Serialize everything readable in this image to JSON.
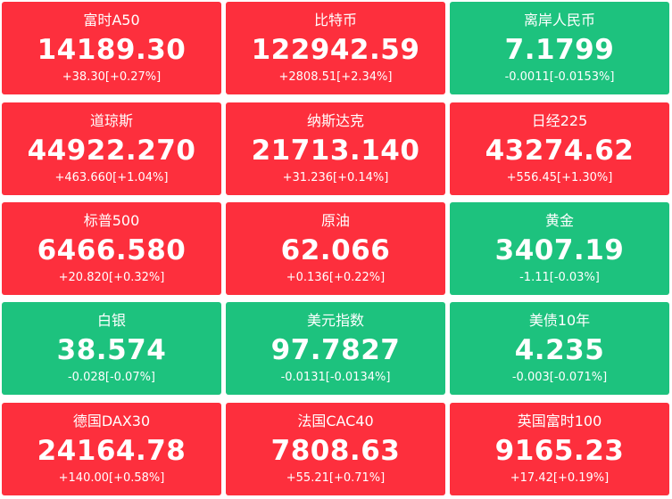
{
  "colors": {
    "up": "#fd2f3d",
    "down": "#1dc27e",
    "text": "#ffffff"
  },
  "tiles": [
    {
      "name": "富时A50",
      "price": "14189.30",
      "change": "+38.30[+0.27%]",
      "direction": "up"
    },
    {
      "name": "比特币",
      "price": "122942.59",
      "change": "+2808.51[+2.34%]",
      "direction": "up"
    },
    {
      "name": "离岸人民币",
      "price": "7.1799",
      "change": "-0.0011[-0.0153%]",
      "direction": "down"
    },
    {
      "name": "道琼斯",
      "price": "44922.270",
      "change": "+463.660[+1.04%]",
      "direction": "up"
    },
    {
      "name": "纳斯达克",
      "price": "21713.140",
      "change": "+31.236[+0.14%]",
      "direction": "up"
    },
    {
      "name": "日经225",
      "price": "43274.62",
      "change": "+556.45[+1.30%]",
      "direction": "up"
    },
    {
      "name": "标普500",
      "price": "6466.580",
      "change": "+20.820[+0.32%]",
      "direction": "up"
    },
    {
      "name": "原油",
      "price": "62.066",
      "change": "+0.136[+0.22%]",
      "direction": "up"
    },
    {
      "name": "黄金",
      "price": "3407.19",
      "change": "-1.11[-0.03%]",
      "direction": "down"
    },
    {
      "name": "白银",
      "price": "38.574",
      "change": "-0.028[-0.07%]",
      "direction": "down"
    },
    {
      "name": "美元指数",
      "price": "97.7827",
      "change": "-0.0131[-0.0134%]",
      "direction": "down"
    },
    {
      "name": "美债10年",
      "price": "4.235",
      "change": "-0.003[-0.071%]",
      "direction": "down"
    },
    {
      "name": "德国DAX30",
      "price": "24164.78",
      "change": "+140.00[+0.58%]",
      "direction": "up"
    },
    {
      "name": "法国CAC40",
      "price": "7808.63",
      "change": "+55.21[+0.71%]",
      "direction": "up"
    },
    {
      "name": "英国富时100",
      "price": "9165.23",
      "change": "+17.42[+0.19%]",
      "direction": "up"
    }
  ]
}
